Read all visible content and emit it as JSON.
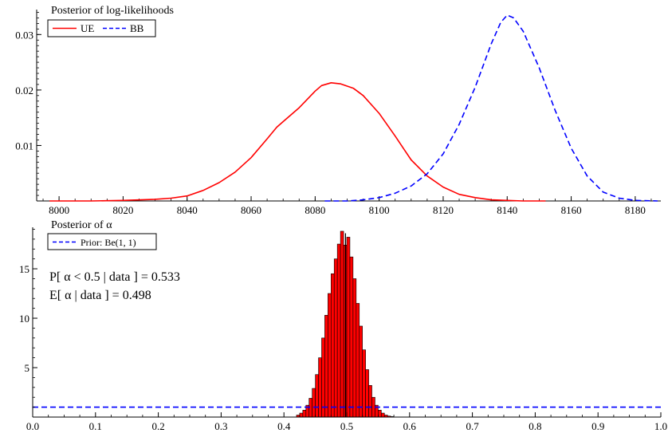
{
  "chart_data": [
    {
      "type": "line",
      "title": "Posterior of log-likelihoods",
      "xlabel": "",
      "ylabel": "",
      "xlim": [
        7993,
        8188
      ],
      "ylim": [
        0,
        0.0345
      ],
      "xticks": [
        8000,
        8020,
        8040,
        8060,
        8080,
        8100,
        8120,
        8140,
        8160,
        8180
      ],
      "yticks": [
        0.01,
        0.02,
        0.03
      ],
      "ytick_labels": [
        "0.01",
        "0.02",
        "0.03"
      ],
      "grid": false,
      "legend_placement": "top-left",
      "series": [
        {
          "name": "UE",
          "color": "#ff0000",
          "style": "solid",
          "x": [
            7997,
            8010,
            8020,
            8030,
            8035,
            8040,
            8045,
            8050,
            8055,
            8060,
            8065,
            8068,
            8070,
            8075,
            8080,
            8082,
            8085,
            8088,
            8092,
            8095,
            8100,
            8105,
            8110,
            8115,
            8120,
            8125,
            8130,
            8135,
            8140,
            8145,
            8152
          ],
          "y": [
            0,
            0,
            0.0001,
            0.0003,
            0.0005,
            0.0009,
            0.0019,
            0.0033,
            0.0052,
            0.0078,
            0.0112,
            0.0133,
            0.0143,
            0.0168,
            0.0198,
            0.0208,
            0.0213,
            0.0211,
            0.0203,
            0.019,
            0.0158,
            0.0117,
            0.0074,
            0.0045,
            0.0025,
            0.0012,
            0.0006,
            0.0002,
            0.0001,
            0,
            0
          ]
        },
        {
          "name": "BB",
          "color": "#0000ff",
          "style": "dashed",
          "x": [
            8083,
            8090,
            8095,
            8100,
            8105,
            8110,
            8115,
            8120,
            8125,
            8130,
            8135,
            8138,
            8140,
            8142,
            8145,
            8150,
            8155,
            8160,
            8165,
            8170,
            8175,
            8180,
            8187
          ],
          "y": [
            0,
            0,
            0.0002,
            0.0006,
            0.0014,
            0.0027,
            0.0049,
            0.0085,
            0.0138,
            0.0205,
            0.0283,
            0.0322,
            0.0335,
            0.033,
            0.0306,
            0.024,
            0.0163,
            0.0095,
            0.0045,
            0.0016,
            0.0005,
            0.0001,
            0
          ]
        }
      ]
    },
    {
      "type": "bar",
      "title": "Posterior of α",
      "xlabel": "",
      "ylabel": "",
      "xlim": [
        0,
        1
      ],
      "ylim": [
        0,
        19.2
      ],
      "xticks": [
        0,
        0.1,
        0.2,
        0.3,
        0.4,
        0.5,
        0.6,
        0.7,
        0.8,
        0.9,
        1.0
      ],
      "xtick_labels": [
        "0.0",
        "0.1",
        "0.2",
        "0.3",
        "0.4",
        "0.5",
        "0.6",
        "0.7",
        "0.8",
        "0.9",
        "1.0"
      ],
      "yticks": [
        5,
        10,
        15
      ],
      "ytick_labels": [
        "5",
        "10",
        "15"
      ],
      "grid": false,
      "legend_placement": "top-left",
      "bar_color": "#ff0000",
      "bar_edge_color": "#000000",
      "bin_width": 0.005,
      "bin_starts": [
        0.42,
        0.425,
        0.43,
        0.435,
        0.44,
        0.445,
        0.45,
        0.455,
        0.46,
        0.465,
        0.47,
        0.475,
        0.48,
        0.485,
        0.49,
        0.495,
        0.5,
        0.505,
        0.51,
        0.515,
        0.52,
        0.525,
        0.53,
        0.535,
        0.54,
        0.545,
        0.55,
        0.555,
        0.56,
        0.565,
        0.57
      ],
      "values": [
        0.2,
        0.4,
        0.7,
        1.2,
        1.9,
        2.9,
        4.3,
        6.0,
        8.0,
        10.3,
        12.5,
        14.5,
        16.0,
        17.5,
        18.8,
        17.4,
        18.2,
        16.2,
        14.0,
        11.5,
        9.2,
        6.8,
        4.8,
        3.2,
        2.0,
        1.2,
        0.7,
        0.4,
        0.2,
        0.1,
        0.05
      ],
      "mean_line_x": 0.498,
      "series": [
        {
          "name": "Prior: Be(1, 1)",
          "color": "#0000ff",
          "style": "dashed",
          "x": [
            0,
            1
          ],
          "y": [
            1,
            1
          ]
        }
      ],
      "annotations": [
        "P[ α < 0.5 | data ] = 0.533",
        "E[ α | data ] = 0.498"
      ]
    }
  ]
}
